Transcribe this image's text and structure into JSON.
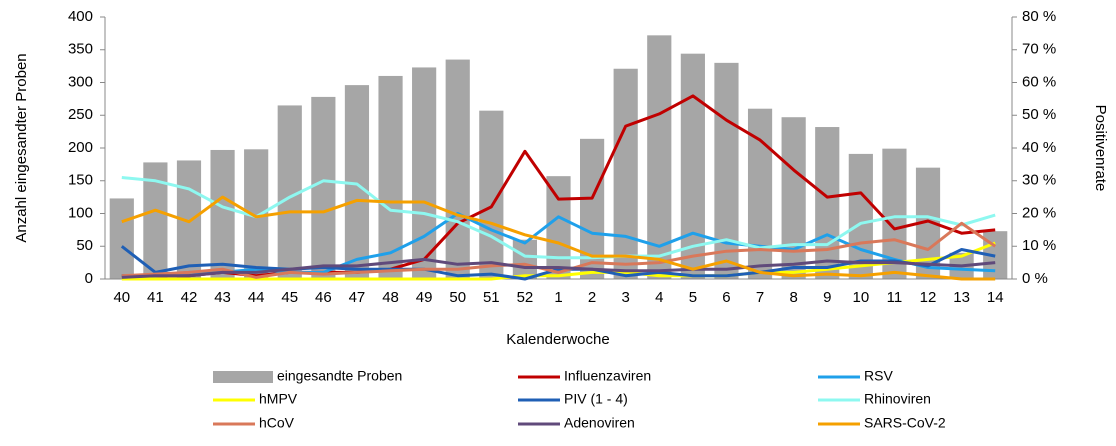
{
  "chart_data": {
    "type": "bar",
    "categories": [
      "40",
      "41",
      "42",
      "43",
      "44",
      "45",
      "46",
      "47",
      "48",
      "49",
      "50",
      "51",
      "52",
      "1",
      "2",
      "3",
      "4",
      "5",
      "6",
      "7",
      "8",
      "9",
      "10",
      "11",
      "12",
      "13",
      "14"
    ],
    "x_label": "Kalenderwoche",
    "y_label": "Anzahl eingesandter Proben",
    "y2_label": "Positivenrate",
    "ylim": [
      0,
      400
    ],
    "yticks": [
      0,
      50,
      100,
      150,
      200,
      250,
      300,
      350,
      400
    ],
    "y2lim": [
      0,
      80
    ],
    "y2ticks": [
      {
        "value": 0,
        "label": "0 %"
      },
      {
        "value": 10,
        "label": "10 %"
      },
      {
        "value": 20,
        "label": "20 %"
      },
      {
        "value": 30,
        "label": "30 %"
      },
      {
        "value": 40,
        "label": "40 %"
      },
      {
        "value": 50,
        "label": "50 %"
      },
      {
        "value": 60,
        "label": "60 %"
      },
      {
        "value": 70,
        "label": "70 %"
      },
      {
        "value": 80,
        "label": "80 %"
      }
    ],
    "legend": "bottom",
    "series": [
      {
        "name": "eingesandte Proben",
        "type": "bar",
        "color": "#a6a6a6",
        "values": [
          123,
          178,
          181,
          197,
          198,
          265,
          278,
          296,
          310,
          323,
          335,
          257,
          60,
          157,
          214,
          321,
          372,
          344,
          330,
          260,
          247,
          232,
          191,
          199,
          170,
          40,
          73
        ]
      },
      {
        "name": "Influenzaviren",
        "type": "line",
        "axis": "y2",
        "color": "#c00000",
        "values": [
          1,
          1,
          1,
          2,
          1,
          2,
          2,
          2,
          3,
          6,
          17,
          22,
          39,
          24.4,
          24.7,
          46.7,
          50.4,
          55.9,
          48.5,
          42.4,
          33.3,
          25,
          26.3,
          15.3,
          17.7,
          14,
          15
        ]
      },
      {
        "name": "RSV",
        "type": "line",
        "axis": "y2",
        "color": "#1fa0ea",
        "values": [
          1,
          1,
          2,
          2,
          3,
          2,
          2,
          6,
          8,
          13,
          20,
          15,
          11,
          19,
          14,
          13,
          10,
          14,
          11,
          10,
          9,
          13.5,
          9,
          6,
          3.5,
          3,
          2.5
        ]
      },
      {
        "name": "hMPV",
        "type": "line",
        "axis": "y2",
        "color": "#ffff00",
        "values": [
          0,
          0,
          0,
          0,
          0,
          0,
          0,
          0,
          0,
          0,
          0,
          0,
          1,
          1,
          2,
          2,
          1,
          1,
          1,
          2,
          2,
          3,
          4,
          5,
          6,
          7,
          11
        ]
      },
      {
        "name": "PIV (1 - 4)",
        "type": "line",
        "axis": "y2",
        "color": "#1f5fb5",
        "values": [
          10,
          2,
          4,
          4.5,
          3.5,
          3,
          3.5,
          3,
          3,
          3,
          1,
          1.5,
          0,
          3,
          3,
          1,
          2,
          1,
          1,
          2,
          3.5,
          3.5,
          5.5,
          5.5,
          4,
          9,
          7
        ]
      },
      {
        "name": "Rhinoviren",
        "type": "line",
        "axis": "y2",
        "color": "#8ef8f0",
        "values": [
          31,
          30,
          27.5,
          22,
          19,
          25,
          30,
          29,
          21,
          20,
          17.5,
          13,
          7,
          6.5,
          6.5,
          7,
          7,
          10,
          12,
          9.5,
          10.5,
          10.5,
          17,
          19,
          19,
          16.5,
          19.5
        ]
      },
      {
        "name": "hCoV",
        "type": "line",
        "axis": "y2",
        "color": "#d9785a",
        "values": [
          1,
          1.5,
          2,
          3,
          0.5,
          2,
          1.5,
          2,
          2.5,
          3,
          3,
          4,
          4.5,
          2,
          5,
          4.5,
          5,
          7,
          8.5,
          9,
          8.5,
          9,
          11,
          12,
          9,
          17,
          10
        ]
      },
      {
        "name": "Adenoviren",
        "type": "line",
        "axis": "y2",
        "color": "#604a7b",
        "values": [
          0.5,
          1,
          1,
          2,
          2,
          3,
          4,
          4,
          5,
          6,
          4.5,
          5,
          3.5,
          3.5,
          3,
          2.5,
          2.5,
          3,
          3,
          4,
          4.5,
          5.5,
          5,
          5,
          4.5,
          4,
          5
        ]
      },
      {
        "name": "SARS-CoV-2",
        "type": "line",
        "axis": "y2",
        "color": "#f5a000",
        "values": [
          17.5,
          21,
          17.5,
          25,
          19,
          20.5,
          20.5,
          24,
          23.5,
          23.5,
          19.5,
          17,
          13.5,
          11,
          7,
          7,
          6,
          3,
          5.5,
          2,
          1,
          1.5,
          1,
          2,
          1,
          0,
          0
        ]
      }
    ]
  }
}
